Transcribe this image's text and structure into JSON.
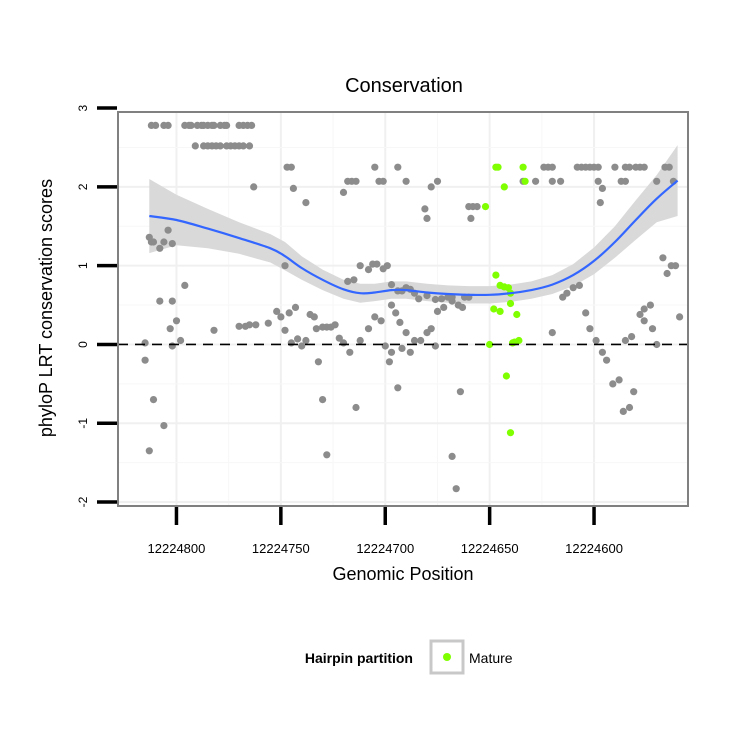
{
  "chart_data": {
    "type": "scatter",
    "title": "Conservation",
    "xlabel": "Genomic Position",
    "ylabel": "phyloP LRT conservation scores",
    "x_reversed": true,
    "xlim": [
      12224828,
      12224555
    ],
    "ylim": [
      -2.05,
      2.95
    ],
    "x_ticks": [
      12224800,
      12224750,
      12224700,
      12224650,
      12224600
    ],
    "x_tick_labels": [
      "12224800",
      "12224750",
      "12224700",
      "12224650",
      "12224600"
    ],
    "y_ticks": [
      -2,
      -1,
      0,
      1,
      2,
      3
    ],
    "y_tick_labels": [
      "-2",
      "-1",
      "0",
      "1",
      "2",
      "3"
    ],
    "reference_line": {
      "y": 0,
      "style": "dashed"
    },
    "grid": true,
    "legend": {
      "title": "Hairpin partition",
      "entries": [
        "Mature"
      ],
      "position": "bottom"
    },
    "colors": {
      "points": "#8c8c8c",
      "highlight": "#7fff00",
      "smooth": "#3366ff",
      "ribbon": "#d9d9d9",
      "panel_border": "#808080"
    },
    "points_gray": [
      [
        12224812,
        2.78
      ],
      [
        12224810,
        2.78
      ],
      [
        12224806,
        2.78
      ],
      [
        12224804,
        2.78
      ],
      [
        12224796,
        2.78
      ],
      [
        12224794,
        2.78
      ],
      [
        12224793,
        2.78
      ],
      [
        12224790,
        2.78
      ],
      [
        12224788,
        2.78
      ],
      [
        12224787,
        2.78
      ],
      [
        12224785,
        2.78
      ],
      [
        12224783,
        2.78
      ],
      [
        12224782,
        2.78
      ],
      [
        12224779,
        2.78
      ],
      [
        12224777,
        2.78
      ],
      [
        12224776,
        2.78
      ],
      [
        12224770,
        2.78
      ],
      [
        12224768,
        2.78
      ],
      [
        12224766,
        2.78
      ],
      [
        12224764,
        2.78
      ],
      [
        12224791,
        2.52
      ],
      [
        12224787,
        2.52
      ],
      [
        12224785,
        2.52
      ],
      [
        12224783,
        2.52
      ],
      [
        12224781,
        2.52
      ],
      [
        12224779,
        2.52
      ],
      [
        12224776,
        2.52
      ],
      [
        12224774,
        2.52
      ],
      [
        12224772,
        2.52
      ],
      [
        12224770,
        2.52
      ],
      [
        12224768,
        2.52
      ],
      [
        12224765,
        2.52
      ],
      [
        12224747,
        2.25
      ],
      [
        12224745,
        2.25
      ],
      [
        12224705,
        2.25
      ],
      [
        12224694,
        2.25
      ],
      [
        12224718,
        2.07
      ],
      [
        12224716,
        2.07
      ],
      [
        12224714,
        2.07
      ],
      [
        12224703,
        2.07
      ],
      [
        12224701,
        2.07
      ],
      [
        12224690,
        2.07
      ],
      [
        12224675,
        2.07
      ],
      [
        12224634,
        2.07
      ],
      [
        12224628,
        2.07
      ],
      [
        12224620,
        2.07
      ],
      [
        12224616,
        2.07
      ],
      [
        12224598,
        2.07
      ],
      [
        12224587,
        2.07
      ],
      [
        12224585,
        2.07
      ],
      [
        12224570,
        2.07
      ],
      [
        12224562,
        2.07
      ],
      [
        12224763,
        2.0
      ],
      [
        12224744,
        1.98
      ],
      [
        12224720,
        1.93
      ],
      [
        12224678,
        2.0
      ],
      [
        12224738,
        1.8
      ],
      [
        12224681,
        1.72
      ],
      [
        12224680,
        1.6
      ],
      [
        12224660,
        1.75
      ],
      [
        12224658,
        1.75
      ],
      [
        12224656,
        1.75
      ],
      [
        12224659,
        1.6
      ],
      [
        12224597,
        1.8
      ],
      [
        12224596,
        1.98
      ],
      [
        12224624,
        2.25
      ],
      [
        12224622,
        2.25
      ],
      [
        12224620,
        2.25
      ],
      [
        12224608,
        2.25
      ],
      [
        12224606,
        2.25
      ],
      [
        12224604,
        2.25
      ],
      [
        12224602,
        2.25
      ],
      [
        12224600,
        2.25
      ],
      [
        12224598,
        2.25
      ],
      [
        12224590,
        2.25
      ],
      [
        12224585,
        2.25
      ],
      [
        12224583,
        2.25
      ],
      [
        12224580,
        2.25
      ],
      [
        12224578,
        2.25
      ],
      [
        12224576,
        2.25
      ],
      [
        12224566,
        2.25
      ],
      [
        12224564,
        2.25
      ],
      [
        12224813,
        1.36
      ],
      [
        12224811,
        1.3
      ],
      [
        12224808,
        1.22
      ],
      [
        12224806,
        1.3
      ],
      [
        12224804,
        1.45
      ],
      [
        12224802,
        1.28
      ],
      [
        12224812,
        1.3
      ],
      [
        12224808,
        0.55
      ],
      [
        12224802,
        0.55
      ],
      [
        12224796,
        0.75
      ],
      [
        12224803,
        0.2
      ],
      [
        12224800,
        0.3
      ],
      [
        12224798,
        0.05
      ],
      [
        12224815,
        0.02
      ],
      [
        12224802,
        -0.02
      ],
      [
        12224782,
        0.18
      ],
      [
        12224770,
        0.23
      ],
      [
        12224767,
        0.23
      ],
      [
        12224765,
        0.25
      ],
      [
        12224762,
        0.25
      ],
      [
        12224756,
        0.27
      ],
      [
        12224748,
        1.0
      ],
      [
        12224746,
        0.4
      ],
      [
        12224752,
        0.42
      ],
      [
        12224743,
        0.47
      ],
      [
        12224750,
        0.35
      ],
      [
        12224748,
        0.18
      ],
      [
        12224745,
        0.02
      ],
      [
        12224742,
        0.07
      ],
      [
        12224740,
        -0.02
      ],
      [
        12224738,
        0.05
      ],
      [
        12224736,
        0.38
      ],
      [
        12224734,
        0.35
      ],
      [
        12224733,
        0.2
      ],
      [
        12224730,
        0.22
      ],
      [
        12224728,
        0.22
      ],
      [
        12224726,
        0.22
      ],
      [
        12224724,
        0.25
      ],
      [
        12224722,
        0.08
      ],
      [
        12224720,
        0.02
      ],
      [
        12224717,
        -0.1
      ],
      [
        12224732,
        -0.22
      ],
      [
        12224712,
        0.05
      ],
      [
        12224708,
        0.2
      ],
      [
        12224705,
        0.35
      ],
      [
        12224702,
        0.3
      ],
      [
        12224697,
        0.5
      ],
      [
        12224695,
        0.4
      ],
      [
        12224693,
        0.28
      ],
      [
        12224690,
        0.15
      ],
      [
        12224688,
        -0.1
      ],
      [
        12224686,
        0.05
      ],
      [
        12224683,
        0.05
      ],
      [
        12224680,
        0.15
      ],
      [
        12224678,
        0.2
      ],
      [
        12224675,
        0.42
      ],
      [
        12224672,
        0.47
      ],
      [
        12224668,
        0.55
      ],
      [
        12224665,
        0.5
      ],
      [
        12224663,
        0.47
      ],
      [
        12224718,
        0.8
      ],
      [
        12224715,
        0.82
      ],
      [
        12224712,
        1.0
      ],
      [
        12224708,
        0.95
      ],
      [
        12224706,
        1.02
      ],
      [
        12224704,
        1.02
      ],
      [
        12224701,
        0.96
      ],
      [
        12224699,
        1.0
      ],
      [
        12224697,
        0.76
      ],
      [
        12224694,
        0.68
      ],
      [
        12224692,
        0.68
      ],
      [
        12224690,
        0.72
      ],
      [
        12224688,
        0.7
      ],
      [
        12224686,
        0.65
      ],
      [
        12224684,
        0.58
      ],
      [
        12224680,
        0.62
      ],
      [
        12224676,
        0.57
      ],
      [
        12224673,
        0.58
      ],
      [
        12224670,
        0.6
      ],
      [
        12224668,
        0.6
      ],
      [
        12224662,
        0.6
      ],
      [
        12224660,
        0.6
      ],
      [
        12224730,
        -0.7
      ],
      [
        12224728,
        -1.4
      ],
      [
        12224714,
        -0.8
      ],
      [
        12224694,
        -0.55
      ],
      [
        12224698,
        -0.22
      ],
      [
        12224668,
        -1.42
      ],
      [
        12224666,
        -1.83
      ],
      [
        12224664,
        -0.6
      ],
      [
        12224676,
        -0.02
      ],
      [
        12224700,
        -0.02
      ],
      [
        12224697,
        -0.1
      ],
      [
        12224692,
        -0.05
      ],
      [
        12224813,
        -1.35
      ],
      [
        12224811,
        -0.7
      ],
      [
        12224806,
        -1.03
      ],
      [
        12224815,
        -0.2
      ],
      [
        12224620,
        0.15
      ],
      [
        12224615,
        0.6
      ],
      [
        12224613,
        0.65
      ],
      [
        12224610,
        0.72
      ],
      [
        12224607,
        0.75
      ],
      [
        12224604,
        0.4
      ],
      [
        12224602,
        0.2
      ],
      [
        12224599,
        0.05
      ],
      [
        12224596,
        -0.1
      ],
      [
        12224594,
        -0.2
      ],
      [
        12224591,
        -0.5
      ],
      [
        12224588,
        -0.45
      ],
      [
        12224586,
        -0.85
      ],
      [
        12224583,
        -0.8
      ],
      [
        12224581,
        -0.6
      ],
      [
        12224578,
        0.38
      ],
      [
        12224576,
        0.45
      ],
      [
        12224572,
        0.2
      ],
      [
        12224570,
        0.0
      ],
      [
        12224565,
        0.9
      ],
      [
        12224563,
        1.0
      ],
      [
        12224567,
        1.1
      ],
      [
        12224561,
        1.0
      ],
      [
        12224559,
        0.35
      ],
      [
        12224573,
        0.5
      ],
      [
        12224576,
        0.3
      ],
      [
        12224582,
        0.1
      ],
      [
        12224585,
        0.05
      ]
    ],
    "points_mature": [
      [
        12224652,
        1.75
      ],
      [
        12224647,
        2.25
      ],
      [
        12224646,
        2.25
      ],
      [
        12224643,
        2.0
      ],
      [
        12224634,
        2.25
      ],
      [
        12224633,
        2.07
      ],
      [
        12224647,
        0.88
      ],
      [
        12224645,
        0.75
      ],
      [
        12224643,
        0.73
      ],
      [
        12224641,
        0.72
      ],
      [
        12224640,
        0.65
      ],
      [
        12224648,
        0.45
      ],
      [
        12224645,
        0.42
      ],
      [
        12224640,
        0.52
      ],
      [
        12224637,
        0.38
      ],
      [
        12224639,
        0.02
      ],
      [
        12224650,
        0.0
      ],
      [
        12224636,
        0.05
      ],
      [
        12224642,
        -0.4
      ],
      [
        12224640,
        -1.12
      ],
      [
        12224638,
        0.03
      ]
    ],
    "smooth_line": [
      [
        12224813,
        1.63
      ],
      [
        12224800,
        1.58
      ],
      [
        12224785,
        1.47
      ],
      [
        12224770,
        1.35
      ],
      [
        12224755,
        1.22
      ],
      [
        12224748,
        1.12
      ],
      [
        12224740,
        0.97
      ],
      [
        12224730,
        0.82
      ],
      [
        12224720,
        0.7
      ],
      [
        12224712,
        0.65
      ],
      [
        12224705,
        0.66
      ],
      [
        12224697,
        0.69
      ],
      [
        12224690,
        0.69
      ],
      [
        12224680,
        0.66
      ],
      [
        12224670,
        0.64
      ],
      [
        12224660,
        0.63
      ],
      [
        12224650,
        0.63
      ],
      [
        12224640,
        0.65
      ],
      [
        12224630,
        0.69
      ],
      [
        12224620,
        0.76
      ],
      [
        12224610,
        0.88
      ],
      [
        12224600,
        1.06
      ],
      [
        12224590,
        1.3
      ],
      [
        12224580,
        1.58
      ],
      [
        12224570,
        1.85
      ],
      [
        12224560,
        2.08
      ]
    ],
    "ribbon_upper": [
      [
        12224813,
        2.1
      ],
      [
        12224800,
        1.9
      ],
      [
        12224785,
        1.72
      ],
      [
        12224770,
        1.55
      ],
      [
        12224755,
        1.4
      ],
      [
        12224748,
        1.3
      ],
      [
        12224740,
        1.12
      ],
      [
        12224730,
        0.95
      ],
      [
        12224720,
        0.82
      ],
      [
        12224712,
        0.77
      ],
      [
        12224705,
        0.77
      ],
      [
        12224697,
        0.8
      ],
      [
        12224690,
        0.8
      ],
      [
        12224680,
        0.77
      ],
      [
        12224670,
        0.75
      ],
      [
        12224660,
        0.74
      ],
      [
        12224650,
        0.74
      ],
      [
        12224640,
        0.76
      ],
      [
        12224630,
        0.8
      ],
      [
        12224620,
        0.88
      ],
      [
        12224610,
        1.02
      ],
      [
        12224600,
        1.23
      ],
      [
        12224590,
        1.5
      ],
      [
        12224580,
        1.83
      ],
      [
        12224570,
        2.15
      ],
      [
        12224560,
        2.53
      ]
    ],
    "ribbon_lower": [
      [
        12224813,
        1.16
      ],
      [
        12224800,
        1.26
      ],
      [
        12224785,
        1.22
      ],
      [
        12224770,
        1.15
      ],
      [
        12224755,
        1.04
      ],
      [
        12224748,
        0.94
      ],
      [
        12224740,
        0.82
      ],
      [
        12224730,
        0.69
      ],
      [
        12224720,
        0.58
      ],
      [
        12224712,
        0.53
      ],
      [
        12224705,
        0.55
      ],
      [
        12224697,
        0.58
      ],
      [
        12224690,
        0.58
      ],
      [
        12224680,
        0.55
      ],
      [
        12224670,
        0.53
      ],
      [
        12224660,
        0.52
      ],
      [
        12224650,
        0.52
      ],
      [
        12224640,
        0.54
      ],
      [
        12224630,
        0.58
      ],
      [
        12224620,
        0.64
      ],
      [
        12224610,
        0.74
      ],
      [
        12224600,
        0.89
      ],
      [
        12224590,
        1.1
      ],
      [
        12224580,
        1.33
      ],
      [
        12224570,
        1.55
      ],
      [
        12224560,
        1.63
      ]
    ]
  }
}
